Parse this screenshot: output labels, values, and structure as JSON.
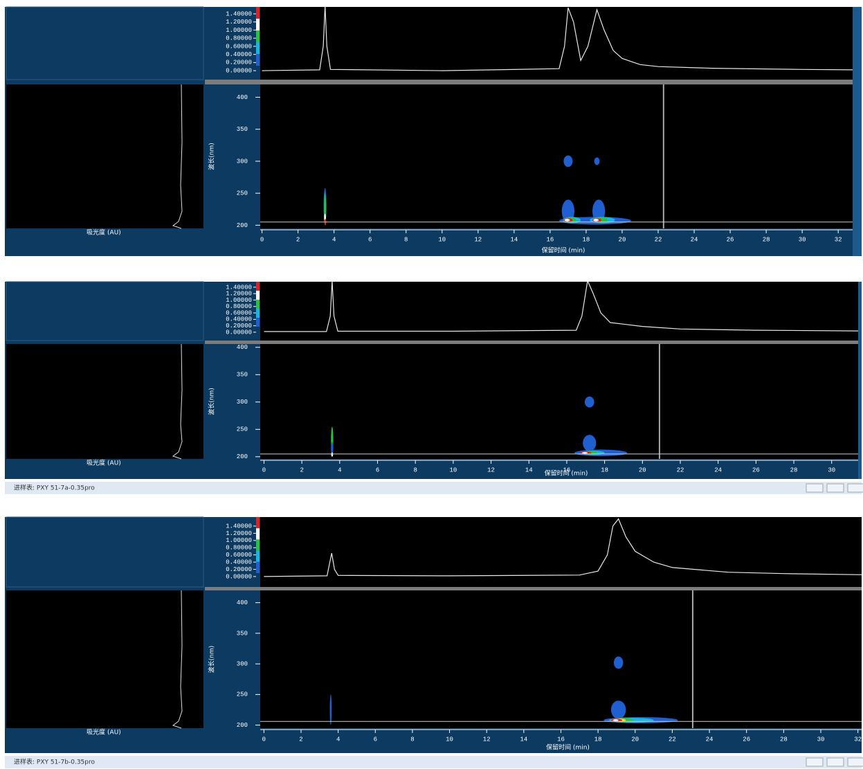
{
  "chart_data": [
    {
      "type": "contour",
      "x_label": "保留时间 (min)",
      "y_label": "波长(nm)",
      "absorbance_label": "吸光度 (AU)",
      "xlim": [
        -0.1,
        32.8
      ],
      "xticks": [
        0,
        2,
        4,
        6,
        8,
        10,
        12,
        14,
        16,
        18,
        20,
        22,
        24,
        26,
        28,
        30,
        32
      ],
      "ylim": [
        195,
        420
      ],
      "yticks": [
        200,
        250,
        300,
        350,
        400
      ],
      "cursor_time": 22.3,
      "cursor_wavelength": 205,
      "chromatogram": {
        "x": [
          0,
          3.2,
          3.4,
          3.5,
          3.6,
          3.8,
          10,
          16.5,
          16.8,
          17.0,
          17.3,
          17.7,
          18.1,
          18.6,
          19.0,
          19.5,
          20,
          21,
          22,
          25,
          30,
          32.8
        ],
        "values": [
          0.0,
          0.02,
          0.6,
          1.6,
          0.6,
          0.03,
          0.0,
          0.05,
          0.6,
          1.55,
          1.2,
          0.25,
          0.6,
          1.5,
          1.0,
          0.5,
          0.3,
          0.15,
          0.1,
          0.06,
          0.03,
          0.02
        ],
        "ylim": [
          -0.22,
          1.57
        ],
        "yticks": [
          {
            "value": 0,
            "label": "0.00000"
          },
          {
            "value": 0.2,
            "label": "0.20000"
          },
          {
            "value": 0.4,
            "label": "0.40000"
          },
          {
            "value": 0.6,
            "label": "0.60000"
          },
          {
            "value": 0.8,
            "label": "0.80000"
          },
          {
            "value": 1.0,
            "label": "1.00000"
          },
          {
            "value": 1.2,
            "label": "1.20000"
          },
          {
            "value": 1.4,
            "label": "1.40000"
          }
        ]
      },
      "contours": [
        {
          "x": 17.0,
          "y": 300,
          "dx": 0.25,
          "dy": 9,
          "color": "#1f5fd0"
        },
        {
          "x": 18.6,
          "y": 300,
          "dx": 0.15,
          "dy": 6,
          "color": "#1f5fd0"
        },
        {
          "x": 17.0,
          "y": 222,
          "dx": 0.35,
          "dy": 18,
          "color": "#1f5fd0"
        },
        {
          "x": 18.7,
          "y": 222,
          "dx": 0.35,
          "dy": 18,
          "color": "#1f5fd0"
        },
        {
          "x": 18.5,
          "y": 207,
          "dx": 2.0,
          "dy": 6,
          "color": "#1f5fd0"
        },
        {
          "x": 17.2,
          "y": 208,
          "dx": 0.5,
          "dy": 5,
          "color": "#19b8d8"
        },
        {
          "x": 18.9,
          "y": 208,
          "dx": 0.7,
          "dy": 5,
          "color": "#19b8d8"
        },
        {
          "x": 17.1,
          "y": 208,
          "dx": 0.35,
          "dy": 4,
          "color": "#2fbf3f"
        },
        {
          "x": 18.8,
          "y": 208,
          "dx": 0.4,
          "dy": 4,
          "color": "#2fbf3f"
        },
        {
          "x": 17.0,
          "y": 208,
          "dx": 0.25,
          "dy": 3,
          "color": "#e02020"
        },
        {
          "x": 18.6,
          "y": 208,
          "dx": 0.25,
          "dy": 3,
          "color": "#e02020"
        },
        {
          "x": 16.95,
          "y": 208,
          "dx": 0.15,
          "dy": 2,
          "color": "#ffffff"
        },
        {
          "x": 18.55,
          "y": 208,
          "dx": 0.15,
          "dy": 2,
          "color": "#ffffff"
        },
        {
          "x": 3.5,
          "y": 230,
          "dx": 0.08,
          "dy": 28,
          "color": "#1f5fd0"
        },
        {
          "x": 3.5,
          "y": 225,
          "dx": 0.06,
          "dy": 25,
          "color": "#2fbf3f"
        },
        {
          "x": 3.5,
          "y": 212,
          "dx": 0.05,
          "dy": 6,
          "color": "#ffffff"
        },
        {
          "x": 3.52,
          "y": 205,
          "dx": 0.05,
          "dy": 5,
          "color": "#e02020"
        }
      ]
    },
    {
      "type": "contour",
      "x_label": "保留时间 (min)",
      "y_label": "波长(nm)",
      "absorbance_label": "吸光度 (AU)",
      "window_title": "进样表: PXY 51-7a-0.35pro",
      "xlim": [
        -0.2,
        31.4
      ],
      "xticks": [
        0,
        2,
        4,
        6,
        8,
        10,
        12,
        14,
        16,
        18,
        20,
        22,
        24,
        26,
        28,
        30
      ],
      "ylim": [
        196,
        406
      ],
      "yticks": [
        200,
        250,
        300,
        350,
        400
      ],
      "cursor_time": 20.9,
      "cursor_wavelength": 205,
      "chromatogram": {
        "x": [
          0,
          3.3,
          3.5,
          3.6,
          3.7,
          3.9,
          10,
          16.5,
          16.8,
          17.1,
          17.4,
          17.8,
          18.3,
          19,
          20,
          22,
          26,
          31.4
        ],
        "values": [
          0.02,
          0.02,
          0.5,
          1.6,
          0.5,
          0.03,
          0.03,
          0.06,
          0.5,
          1.6,
          1.2,
          0.6,
          0.3,
          0.25,
          0.18,
          0.1,
          0.06,
          0.04
        ],
        "ylim": [
          -0.26,
          1.57
        ],
        "yticks": [
          {
            "value": 0,
            "label": "0.00000"
          },
          {
            "value": 0.2,
            "label": "0.20000"
          },
          {
            "value": 0.4,
            "label": "0.40000"
          },
          {
            "value": 0.6,
            "label": "0.60000"
          },
          {
            "value": 0.8,
            "label": "0.80000"
          },
          {
            "value": 1.0,
            "label": "1.00000"
          },
          {
            "value": 1.2,
            "label": "1.20000"
          },
          {
            "value": 1.4,
            "label": "1.40000"
          }
        ]
      },
      "contours": [
        {
          "x": 17.2,
          "y": 300,
          "dx": 0.25,
          "dy": 10,
          "color": "#1f5fd0"
        },
        {
          "x": 17.2,
          "y": 225,
          "dx": 0.35,
          "dy": 15,
          "color": "#1f5fd0"
        },
        {
          "x": 17.8,
          "y": 207,
          "dx": 1.4,
          "dy": 6,
          "color": "#1f5fd0"
        },
        {
          "x": 17.4,
          "y": 207,
          "dx": 0.6,
          "dy": 4,
          "color": "#19b8d8"
        },
        {
          "x": 17.2,
          "y": 207,
          "dx": 0.4,
          "dy": 3.5,
          "color": "#2fbf3f"
        },
        {
          "x": 17.0,
          "y": 207,
          "dx": 0.3,
          "dy": 2.5,
          "color": "#e02020"
        },
        {
          "x": 16.95,
          "y": 207,
          "dx": 0.15,
          "dy": 1.5,
          "color": "#ffffff"
        },
        {
          "x": 3.6,
          "y": 230,
          "dx": 0.06,
          "dy": 25,
          "color": "#2fbf3f"
        },
        {
          "x": 3.6,
          "y": 215,
          "dx": 0.06,
          "dy": 12,
          "color": "#1f5fd0"
        },
        {
          "x": 3.6,
          "y": 204,
          "dx": 0.05,
          "dy": 4,
          "color": "#ffffff"
        }
      ]
    },
    {
      "type": "contour",
      "x_label": "保留时间 (min)",
      "y_label": "波长(nm)",
      "absorbance_label": "吸光度 (AU)",
      "window_title": "进样表: PXY 51-7b-0.35pro",
      "xlim": [
        -0.2,
        32.2
      ],
      "xticks": [
        0,
        2,
        4,
        6,
        8,
        10,
        12,
        14,
        16,
        18,
        20,
        22,
        24,
        26,
        28,
        30,
        32
      ],
      "ylim": [
        195,
        420
      ],
      "yticks": [
        200,
        250,
        300,
        350,
        400
      ],
      "cursor_time": 23.1,
      "cursor_wavelength": 206,
      "chromatogram": {
        "x": [
          0,
          3.4,
          3.55,
          3.65,
          3.8,
          4.0,
          10,
          17,
          18,
          18.5,
          18.8,
          19.1,
          19.5,
          20,
          21,
          22,
          25,
          28,
          32.2
        ],
        "values": [
          0.0,
          0.02,
          0.4,
          0.65,
          0.2,
          0.03,
          0.02,
          0.04,
          0.15,
          0.6,
          1.4,
          1.6,
          1.1,
          0.7,
          0.4,
          0.25,
          0.12,
          0.08,
          0.05
        ],
        "ylim": [
          -0.29,
          1.65
        ],
        "yticks": [
          {
            "value": 0,
            "label": "0.00000"
          },
          {
            "value": 0.2,
            "label": "0.20000"
          },
          {
            "value": 0.4,
            "label": "0.40000"
          },
          {
            "value": 0.6,
            "label": "0.60000"
          },
          {
            "value": 0.8,
            "label": "0.80000"
          },
          {
            "value": 1.0,
            "label": "1.00000"
          },
          {
            "value": 1.2,
            "label": "1.20000"
          },
          {
            "value": 1.4,
            "label": "1.40000"
          }
        ]
      },
      "contours": [
        {
          "x": 19.1,
          "y": 302,
          "dx": 0.25,
          "dy": 10,
          "color": "#1f5fd0"
        },
        {
          "x": 19.1,
          "y": 225,
          "dx": 0.4,
          "dy": 15,
          "color": "#1f5fd0"
        },
        {
          "x": 20.3,
          "y": 208,
          "dx": 2.0,
          "dy": 5,
          "color": "#1f5fd0"
        },
        {
          "x": 19.8,
          "y": 208,
          "dx": 1.2,
          "dy": 4,
          "color": "#19b8d8"
        },
        {
          "x": 19.3,
          "y": 208,
          "dx": 0.6,
          "dy": 3.5,
          "color": "#2fbf3f"
        },
        {
          "x": 19.1,
          "y": 208,
          "dx": 0.4,
          "dy": 3,
          "color": "#e8e020"
        },
        {
          "x": 19.0,
          "y": 208,
          "dx": 0.3,
          "dy": 2.5,
          "color": "#e02020"
        },
        {
          "x": 18.95,
          "y": 208,
          "dx": 0.15,
          "dy": 1.5,
          "color": "#ffffff"
        },
        {
          "x": 3.6,
          "y": 225,
          "dx": 0.05,
          "dy": 25,
          "color": "#1f5fd0"
        }
      ]
    }
  ]
}
